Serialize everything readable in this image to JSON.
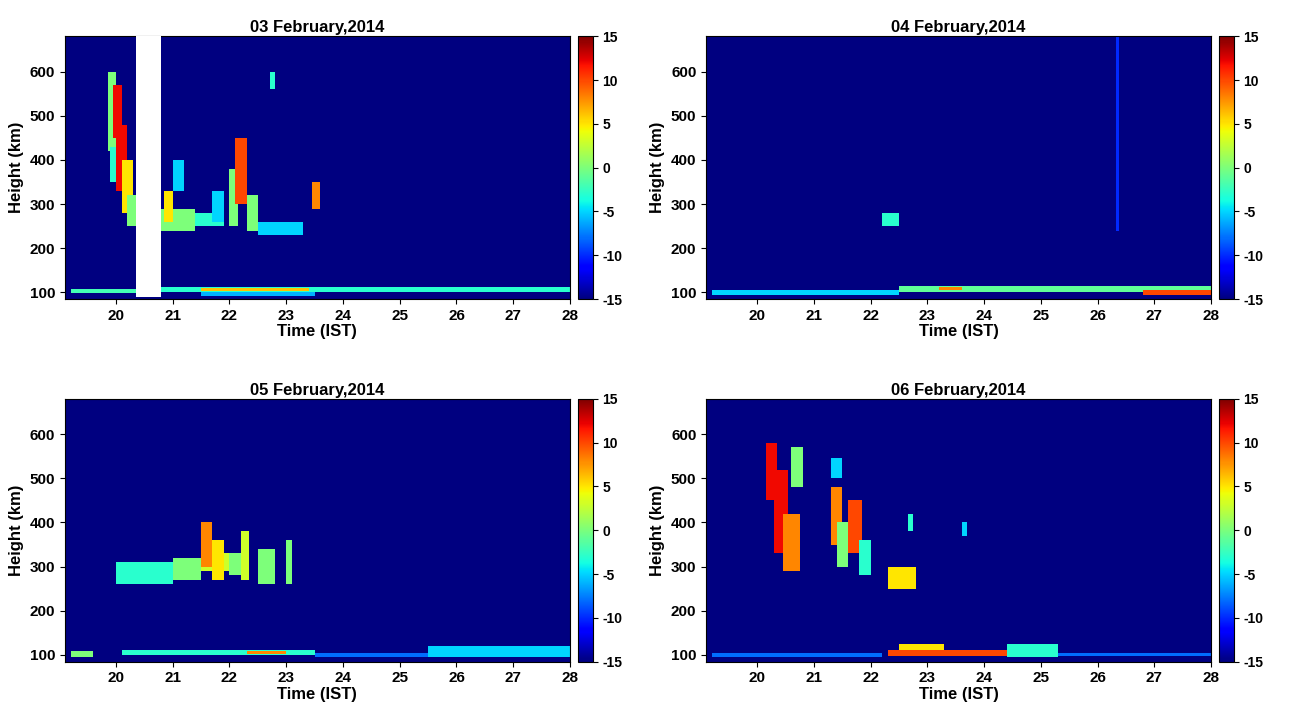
{
  "chart_data": [
    {
      "type": "heatmap",
      "title": "03 February,2014",
      "x_label": "Time (IST)",
      "y_label": "Height (km)",
      "xlim": [
        19.1,
        28
      ],
      "xticks": [
        20,
        21,
        22,
        23,
        24,
        25,
        26,
        27,
        28
      ],
      "ylim": [
        85,
        680
      ],
      "yticks": [
        100,
        200,
        300,
        400,
        500,
        600
      ],
      "colorbar_range": [
        -15,
        15
      ],
      "colorbar_ticks": [
        -15,
        -10,
        -5,
        0,
        5,
        10,
        15
      ],
      "background": -15,
      "data_gap": [
        {
          "time": [
            20.35,
            20.8
          ],
          "height": [
            90,
            680
          ]
        }
      ],
      "cells": [
        {
          "time": [
            19.2,
            20.35
          ],
          "height": [
            98,
            108
          ],
          "value": -2
        },
        {
          "time": [
            20.8,
            28.0
          ],
          "height": [
            100,
            112
          ],
          "value": -3
        },
        {
          "time": [
            21.5,
            23.4
          ],
          "height": [
            104,
            110
          ],
          "value": 6
        },
        {
          "time": [
            21.5,
            23.5
          ],
          "height": [
            92,
            100
          ],
          "value": -6
        },
        {
          "time": [
            19.85,
            20.0
          ],
          "height": [
            420,
            600
          ],
          "value": 0
        },
        {
          "time": [
            19.95,
            20.1
          ],
          "height": [
            450,
            570
          ],
          "value": 12
        },
        {
          "time": [
            19.9,
            20.05
          ],
          "height": [
            350,
            430
          ],
          "value": -3
        },
        {
          "time": [
            20.0,
            20.2
          ],
          "height": [
            330,
            480
          ],
          "value": 12
        },
        {
          "time": [
            20.1,
            20.3
          ],
          "height": [
            280,
            400
          ],
          "value": 5
        },
        {
          "time": [
            20.2,
            20.35
          ],
          "height": [
            250,
            320
          ],
          "value": 0
        },
        {
          "time": [
            20.8,
            21.4
          ],
          "height": [
            240,
            290
          ],
          "value": 0
        },
        {
          "time": [
            20.85,
            21.0
          ],
          "height": [
            260,
            330
          ],
          "value": 5
        },
        {
          "time": [
            21.0,
            21.2
          ],
          "height": [
            330,
            400
          ],
          "value": -5
        },
        {
          "time": [
            21.4,
            21.9
          ],
          "height": [
            250,
            280
          ],
          "value": -3
        },
        {
          "time": [
            21.7,
            21.9
          ],
          "height": [
            260,
            330
          ],
          "value": -5
        },
        {
          "time": [
            22.0,
            22.15
          ],
          "height": [
            250,
            380
          ],
          "value": 0
        },
        {
          "time": [
            22.1,
            22.3
          ],
          "height": [
            300,
            450
          ],
          "value": 10
        },
        {
          "time": [
            22.3,
            22.5
          ],
          "height": [
            240,
            320
          ],
          "value": 0
        },
        {
          "time": [
            22.5,
            23.3
          ],
          "height": [
            230,
            260
          ],
          "value": -5
        },
        {
          "time": [
            22.72,
            22.8
          ],
          "height": [
            560,
            600
          ],
          "value": -3
        },
        {
          "time": [
            23.45,
            23.6
          ],
          "height": [
            290,
            350
          ],
          "value": 8
        }
      ]
    },
    {
      "type": "heatmap",
      "title": "04 February,2014",
      "x_label": "Time (IST)",
      "y_label": "Height (km)",
      "xlim": [
        19.1,
        28
      ],
      "xticks": [
        20,
        21,
        22,
        23,
        24,
        25,
        26,
        27,
        28
      ],
      "ylim": [
        85,
        680
      ],
      "yticks": [
        100,
        200,
        300,
        400,
        500,
        600
      ],
      "colorbar_range": [
        -15,
        15
      ],
      "colorbar_ticks": [
        -15,
        -10,
        -5,
        0,
        5,
        10,
        15
      ],
      "background": -15,
      "cells": [
        {
          "time": [
            19.2,
            22.5
          ],
          "height": [
            95,
            105
          ],
          "value": -5
        },
        {
          "time": [
            22.5,
            28.0
          ],
          "height": [
            100,
            115
          ],
          "value": -1
        },
        {
          "time": [
            23.2,
            23.6
          ],
          "height": [
            105,
            112
          ],
          "value": 8
        },
        {
          "time": [
            26.8,
            28.0
          ],
          "height": [
            95,
            105
          ],
          "value": 10
        },
        {
          "time": [
            22.2,
            22.5
          ],
          "height": [
            250,
            280
          ],
          "value": -3
        },
        {
          "time": [
            26.33,
            26.38
          ],
          "height": [
            240,
            680
          ],
          "value": -10
        }
      ]
    },
    {
      "type": "heatmap",
      "title": "05 February,2014",
      "x_label": "Time (IST)",
      "y_label": "Height (km)",
      "xlim": [
        19.1,
        28
      ],
      "xticks": [
        20,
        21,
        22,
        23,
        24,
        25,
        26,
        27,
        28
      ],
      "ylim": [
        85,
        680
      ],
      "yticks": [
        100,
        200,
        300,
        400,
        500,
        600
      ],
      "colorbar_range": [
        -15,
        15
      ],
      "colorbar_ticks": [
        -15,
        -10,
        -5,
        0,
        5,
        10,
        15
      ],
      "background": -15,
      "cells": [
        {
          "time": [
            19.2,
            19.6
          ],
          "height": [
            95,
            110
          ],
          "value": 0
        },
        {
          "time": [
            20.1,
            23.5
          ],
          "height": [
            100,
            112
          ],
          "value": -3
        },
        {
          "time": [
            22.3,
            23.0
          ],
          "height": [
            102,
            108
          ],
          "value": 8
        },
        {
          "time": [
            23.5,
            25.5
          ],
          "height": [
            95,
            105
          ],
          "value": -8
        },
        {
          "time": [
            25.5,
            28.0
          ],
          "height": [
            95,
            120
          ],
          "value": -5
        },
        {
          "time": [
            20.0,
            21.0
          ],
          "height": [
            260,
            310
          ],
          "value": -3
        },
        {
          "time": [
            21.0,
            21.5
          ],
          "height": [
            270,
            320
          ],
          "value": 0
        },
        {
          "time": [
            21.5,
            22.0
          ],
          "height": [
            290,
            330
          ],
          "value": 3
        },
        {
          "time": [
            21.5,
            21.7
          ],
          "height": [
            300,
            400
          ],
          "value": 8
        },
        {
          "time": [
            21.7,
            21.9
          ],
          "height": [
            270,
            360
          ],
          "value": 5
        },
        {
          "time": [
            22.0,
            22.2
          ],
          "height": [
            280,
            330
          ],
          "value": 0
        },
        {
          "time": [
            22.2,
            22.35
          ],
          "height": [
            270,
            380
          ],
          "value": 3
        },
        {
          "time": [
            22.5,
            22.8
          ],
          "height": [
            260,
            340
          ],
          "value": 0
        },
        {
          "time": [
            23.0,
            23.1
          ],
          "height": [
            260,
            360
          ],
          "value": 0
        }
      ]
    },
    {
      "type": "heatmap",
      "title": "06 February,2014",
      "x_label": "Time (IST)",
      "y_label": "Height (km)",
      "xlim": [
        19.1,
        28
      ],
      "xticks": [
        20,
        21,
        22,
        23,
        24,
        25,
        26,
        27,
        28
      ],
      "ylim": [
        85,
        680
      ],
      "yticks": [
        100,
        200,
        300,
        400,
        500,
        600
      ],
      "colorbar_range": [
        -15,
        15
      ],
      "colorbar_ticks": [
        -15,
        -10,
        -5,
        0,
        5,
        10,
        15
      ],
      "background": -15,
      "cells": [
        {
          "time": [
            19.2,
            22.2
          ],
          "height": [
            95,
            105
          ],
          "value": -8
        },
        {
          "time": [
            22.3,
            24.5
          ],
          "height": [
            98,
            112
          ],
          "value": 10
        },
        {
          "time": [
            22.5,
            23.3
          ],
          "height": [
            112,
            125
          ],
          "value": 5
        },
        {
          "time": [
            24.4,
            25.3
          ],
          "height": [
            95,
            125
          ],
          "value": -3
        },
        {
          "time": [
            25.3,
            28.0
          ],
          "height": [
            98,
            105
          ],
          "value": -8
        },
        {
          "time": [
            20.15,
            20.35
          ],
          "height": [
            450,
            580
          ],
          "value": 12
        },
        {
          "time": [
            20.3,
            20.55
          ],
          "height": [
            330,
            520
          ],
          "value": 12
        },
        {
          "time": [
            20.45,
            20.75
          ],
          "height": [
            290,
            420
          ],
          "value": 8
        },
        {
          "time": [
            20.6,
            20.8
          ],
          "height": [
            480,
            570
          ],
          "value": 0
        },
        {
          "time": [
            21.3,
            21.5
          ],
          "height": [
            350,
            480
          ],
          "value": 8
        },
        {
          "time": [
            21.3,
            21.5
          ],
          "height": [
            500,
            545
          ],
          "value": -5
        },
        {
          "time": [
            21.4,
            21.6
          ],
          "height": [
            300,
            400
          ],
          "value": 0
        },
        {
          "time": [
            21.6,
            21.85
          ],
          "height": [
            330,
            450
          ],
          "value": 10
        },
        {
          "time": [
            21.8,
            22.0
          ],
          "height": [
            280,
            360
          ],
          "value": -3
        },
        {
          "time": [
            22.3,
            22.8
          ],
          "height": [
            250,
            300
          ],
          "value": 5
        },
        {
          "time": [
            22.65,
            22.75
          ],
          "height": [
            380,
            420
          ],
          "value": -3
        },
        {
          "time": [
            23.6,
            23.7
          ],
          "height": [
            370,
            400
          ],
          "value": -5
        }
      ]
    }
  ]
}
